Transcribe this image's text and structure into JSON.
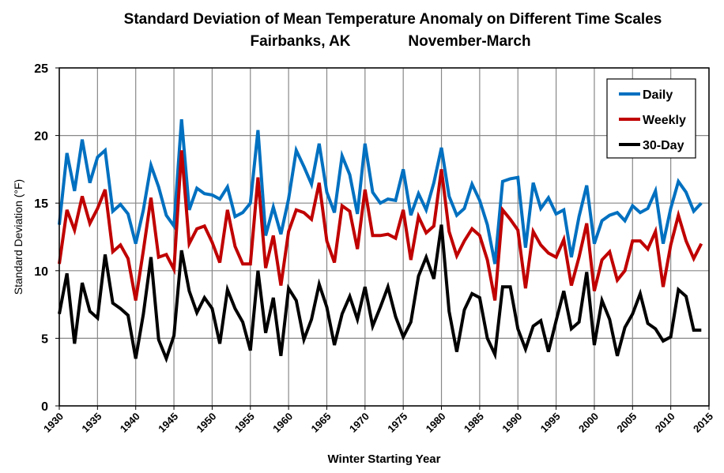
{
  "chart_data": {
    "type": "line",
    "title": "Standard Deviation of Mean Temperature Anomaly on Different Time Scales",
    "subtitle_left": "Fairbanks, AK",
    "subtitle_right": "November-March",
    "xlabel": "Winter Starting Year",
    "ylabel": "Standard Deviation (°F)",
    "xlim": [
      1930,
      2015
    ],
    "ylim": [
      0,
      25
    ],
    "xticks": [
      "1930",
      "1935",
      "1940",
      "1945",
      "1950",
      "1955",
      "1960",
      "1965",
      "1970",
      "1975",
      "1980",
      "1985",
      "1990",
      "1995",
      "2000",
      "2005",
      "2010",
      "2015"
    ],
    "yticks": [
      "0",
      "5",
      "10",
      "15",
      "20",
      "25"
    ],
    "grid": true,
    "legend_position": "top-right",
    "x_start": 1930,
    "series": [
      {
        "name": "Daily",
        "color": "#0070C0",
        "values": [
          13.4,
          18.7,
          15.9,
          19.7,
          16.5,
          18.4,
          18.9,
          14.4,
          14.9,
          14.2,
          12.0,
          14.5,
          17.8,
          16.2,
          14.1,
          13.3,
          21.2,
          14.5,
          16.1,
          15.7,
          15.6,
          15.3,
          16.2,
          14.0,
          14.3,
          15.0,
          20.4,
          12.6,
          14.7,
          12.7,
          15.3,
          18.9,
          17.7,
          16.4,
          19.4,
          15.8,
          14.3,
          18.5,
          17.1,
          14.2,
          19.4,
          15.8,
          15.0,
          15.3,
          15.2,
          17.5,
          14.1,
          15.7,
          14.5,
          16.5,
          19.1,
          15.5,
          14.1,
          14.6,
          16.4,
          15.2,
          13.4,
          10.5,
          16.6,
          16.8,
          16.9,
          11.7,
          16.5,
          14.6,
          15.4,
          14.2,
          14.5,
          11.0,
          14.0,
          16.3,
          12.0,
          13.7,
          14.1,
          14.3,
          13.7,
          14.8,
          14.3,
          14.6,
          15.9,
          12.0,
          14.6,
          16.6,
          15.8,
          14.4,
          15.0
        ]
      },
      {
        "name": "Weekly",
        "color": "#C00000",
        "values": [
          10.5,
          14.5,
          13.0,
          15.5,
          13.5,
          14.6,
          16.0,
          11.4,
          11.9,
          10.9,
          7.8,
          11.5,
          15.4,
          11.0,
          11.2,
          10.1,
          18.9,
          12.0,
          13.1,
          13.3,
          12.1,
          10.6,
          14.5,
          11.8,
          10.5,
          10.5,
          16.9,
          10.2,
          12.6,
          8.9,
          12.9,
          14.5,
          14.3,
          13.8,
          16.5,
          12.2,
          10.6,
          14.8,
          14.4,
          11.6,
          16.0,
          12.6,
          12.6,
          12.7,
          12.4,
          14.5,
          10.8,
          14.0,
          12.8,
          13.3,
          17.5,
          12.9,
          11.1,
          12.2,
          13.1,
          12.6,
          10.8,
          7.8,
          14.5,
          13.8,
          13.0,
          8.7,
          12.9,
          11.9,
          11.3,
          11.0,
          12.3,
          8.9,
          11.0,
          13.5,
          8.5,
          10.8,
          11.4,
          9.3,
          10.0,
          12.2,
          12.2,
          11.6,
          12.9,
          8.8,
          11.9,
          14.1,
          12.2,
          10.9,
          12.0
        ]
      },
      {
        "name": "30-Day",
        "color": "#000000",
        "values": [
          6.8,
          9.8,
          4.6,
          9.1,
          7.0,
          6.5,
          11.2,
          7.6,
          7.2,
          6.7,
          3.5,
          6.8,
          11.0,
          4.9,
          3.5,
          5.2,
          11.5,
          8.5,
          6.9,
          8.0,
          7.2,
          4.6,
          8.6,
          7.2,
          6.2,
          4.1,
          10.0,
          5.4,
          8.0,
          3.7,
          8.7,
          7.8,
          4.9,
          6.4,
          9.0,
          7.3,
          4.5,
          6.8,
          8.1,
          6.4,
          8.8,
          5.9,
          7.3,
          8.8,
          6.6,
          5.1,
          6.2,
          9.6,
          11.0,
          9.4,
          13.4,
          7.0,
          4.0,
          7.1,
          8.3,
          8.0,
          5.0,
          3.8,
          8.8,
          8.8,
          5.7,
          4.2,
          5.9,
          6.3,
          4.0,
          6.3,
          8.5,
          5.7,
          6.2,
          9.9,
          4.5,
          7.8,
          6.4,
          3.7,
          5.8,
          6.8,
          8.3,
          6.1,
          5.7,
          4.8,
          5.1,
          8.6,
          8.1,
          5.6,
          5.6
        ]
      }
    ]
  }
}
